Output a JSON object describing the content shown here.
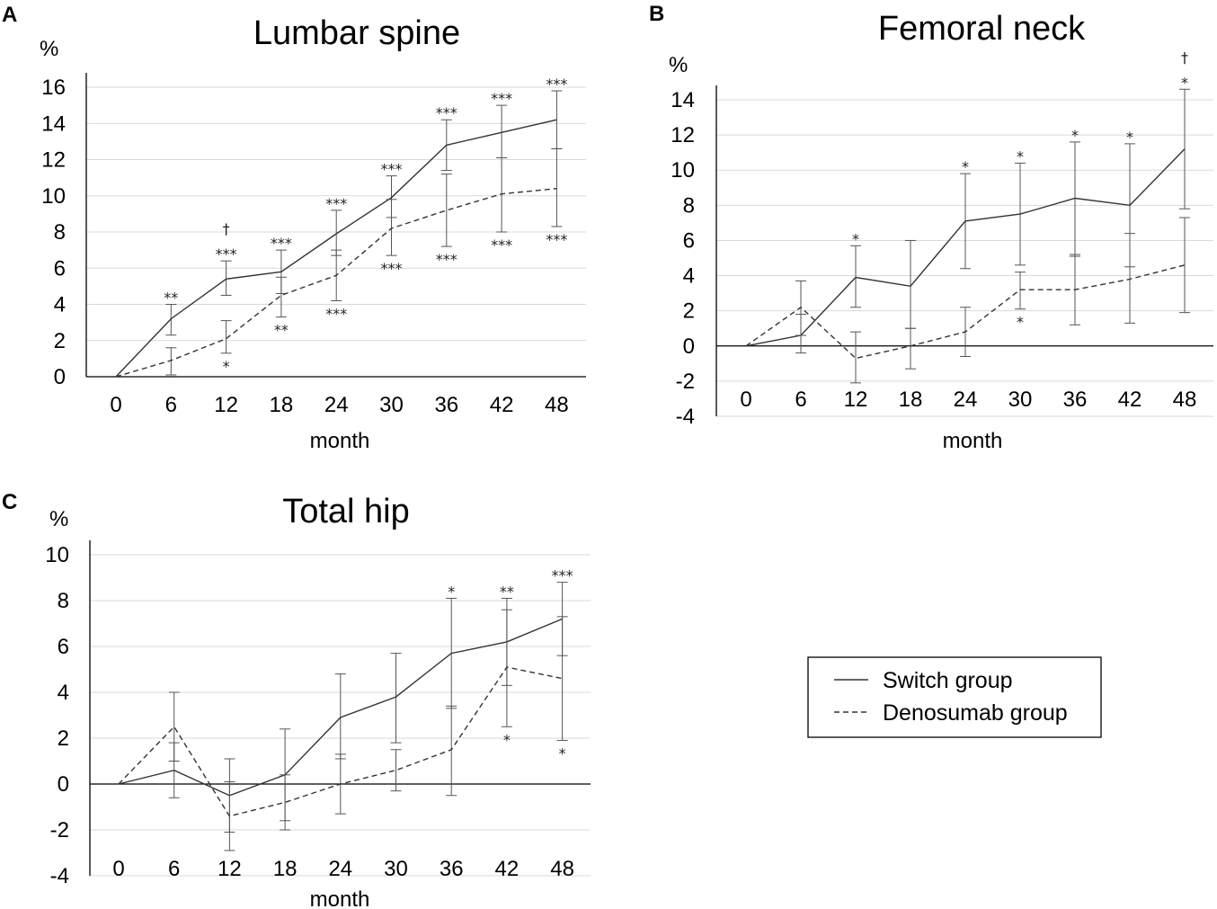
{
  "legend": {
    "switch": "Switch group",
    "denosumab": "Denosumab group"
  },
  "chart_data": [
    {
      "panel": "A",
      "type": "line",
      "title": "Lumbar spine",
      "ylabel": "%",
      "xlabel": "month",
      "categories": [
        "0",
        "6",
        "12",
        "18",
        "24",
        "30",
        "36",
        "42",
        "48"
      ],
      "ylim": [
        0,
        16
      ],
      "yticks": [
        "0",
        "2",
        "4",
        "6",
        "8",
        "10",
        "12",
        "14",
        "16"
      ],
      "gridlines": true,
      "series": [
        {
          "name": "Switch group",
          "style": "solid",
          "values": [
            0,
            3.2,
            5.4,
            5.8,
            7.9,
            9.9,
            12.8,
            13.5,
            14.2
          ],
          "err_lo": [
            0,
            2.3,
            4.5,
            4.6,
            6.7,
            8.8,
            11.4,
            12.1,
            12.6
          ],
          "err_hi": [
            0,
            4.0,
            6.4,
            7.0,
            9.2,
            11.1,
            14.2,
            15.0,
            15.8
          ],
          "annotations": [
            null,
            [
              "**"
            ],
            [
              "†",
              "***"
            ],
            [
              "***"
            ],
            [
              "***"
            ],
            [
              "***"
            ],
            [
              "***"
            ],
            [
              "***"
            ],
            [
              "***"
            ]
          ]
        },
        {
          "name": "Denosumab group",
          "style": "dashed",
          "values": [
            0,
            0.9,
            2.1,
            4.5,
            5.6,
            8.2,
            9.2,
            10.1,
            10.4
          ],
          "err_lo": [
            0,
            0.1,
            1.3,
            3.3,
            4.2,
            6.7,
            7.2,
            8.0,
            8.3
          ],
          "err_hi": [
            0,
            1.6,
            3.1,
            5.5,
            7.0,
            9.8,
            11.2,
            12.1,
            12.6
          ],
          "annotations": [
            null,
            null,
            [
              "*"
            ],
            [
              "**"
            ],
            [
              "***"
            ],
            [
              "***"
            ],
            [
              "***"
            ],
            [
              "***"
            ],
            [
              "***"
            ]
          ]
        }
      ]
    },
    {
      "panel": "B",
      "type": "line",
      "title": "Femoral neck",
      "ylabel": "%",
      "xlabel": "month",
      "categories": [
        "0",
        "6",
        "12",
        "18",
        "24",
        "30",
        "36",
        "42",
        "48"
      ],
      "ylim": [
        -4,
        14
      ],
      "yticks": [
        "-4",
        "-2",
        "0",
        "2",
        "4",
        "6",
        "8",
        "10",
        "12",
        "14"
      ],
      "gridlines": true,
      "series": [
        {
          "name": "Switch group",
          "style": "solid",
          "values": [
            0,
            0.6,
            3.9,
            3.4,
            7.1,
            7.5,
            8.4,
            8.0,
            11.2
          ],
          "err_lo": [
            0,
            -0.4,
            2.2,
            1.0,
            4.4,
            4.6,
            5.1,
            4.5,
            7.8
          ],
          "err_hi": [
            0,
            1.8,
            5.7,
            6.0,
            9.8,
            10.4,
            11.6,
            11.5,
            14.6
          ],
          "annotations": [
            null,
            null,
            [
              "*"
            ],
            null,
            [
              "*"
            ],
            [
              "*"
            ],
            [
              "*"
            ],
            [
              "*"
            ],
            [
              "†",
              "*"
            ]
          ]
        },
        {
          "name": "Denosumab group",
          "style": "dashed",
          "values": [
            0,
            2.2,
            -0.7,
            0.0,
            0.8,
            3.2,
            3.2,
            3.8,
            4.6
          ],
          "err_lo": [
            0,
            0.6,
            -2.1,
            -1.3,
            -0.6,
            2.1,
            1.2,
            1.3,
            1.9
          ],
          "err_hi": [
            0,
            3.7,
            0.8,
            1.0,
            2.2,
            4.2,
            5.2,
            6.4,
            7.3
          ],
          "annotations": [
            null,
            null,
            null,
            null,
            null,
            [
              "*"
            ],
            null,
            null,
            null
          ]
        }
      ]
    },
    {
      "panel": "C",
      "type": "line",
      "title": "Total hip",
      "ylabel": "%",
      "xlabel": "month",
      "categories": [
        "0",
        "6",
        "12",
        "18",
        "24",
        "30",
        "36",
        "42",
        "48"
      ],
      "ylim": [
        -4,
        10
      ],
      "yticks": [
        "-4",
        "-2",
        "0",
        "2",
        "4",
        "6",
        "8",
        "10"
      ],
      "gridlines": true,
      "series": [
        {
          "name": "Switch group",
          "style": "solid",
          "values": [
            0,
            0.6,
            -0.5,
            0.4,
            2.9,
            3.8,
            5.7,
            6.2,
            7.2
          ],
          "err_lo": [
            0,
            -0.6,
            -2.1,
            -1.6,
            1.1,
            1.8,
            3.3,
            4.3,
            5.6
          ],
          "err_hi": [
            0,
            1.8,
            1.1,
            2.4,
            4.8,
            5.7,
            8.1,
            8.1,
            8.8
          ],
          "annotations": [
            null,
            null,
            null,
            null,
            null,
            null,
            [
              "*"
            ],
            [
              "**"
            ],
            [
              "***"
            ]
          ]
        },
        {
          "name": "Denosumab group",
          "style": "dashed",
          "values": [
            0,
            2.5,
            -1.4,
            -0.8,
            0.0,
            0.6,
            1.5,
            5.1,
            4.6
          ],
          "err_lo": [
            0,
            1.0,
            -2.9,
            -2.0,
            -1.3,
            -0.3,
            -0.5,
            2.5,
            1.9
          ],
          "err_hi": [
            0,
            4.0,
            0.1,
            0.4,
            1.3,
            1.5,
            3.4,
            7.6,
            7.3
          ],
          "annotations": [
            null,
            null,
            null,
            null,
            null,
            null,
            null,
            [
              "*"
            ],
            [
              "*"
            ]
          ]
        }
      ]
    }
  ]
}
